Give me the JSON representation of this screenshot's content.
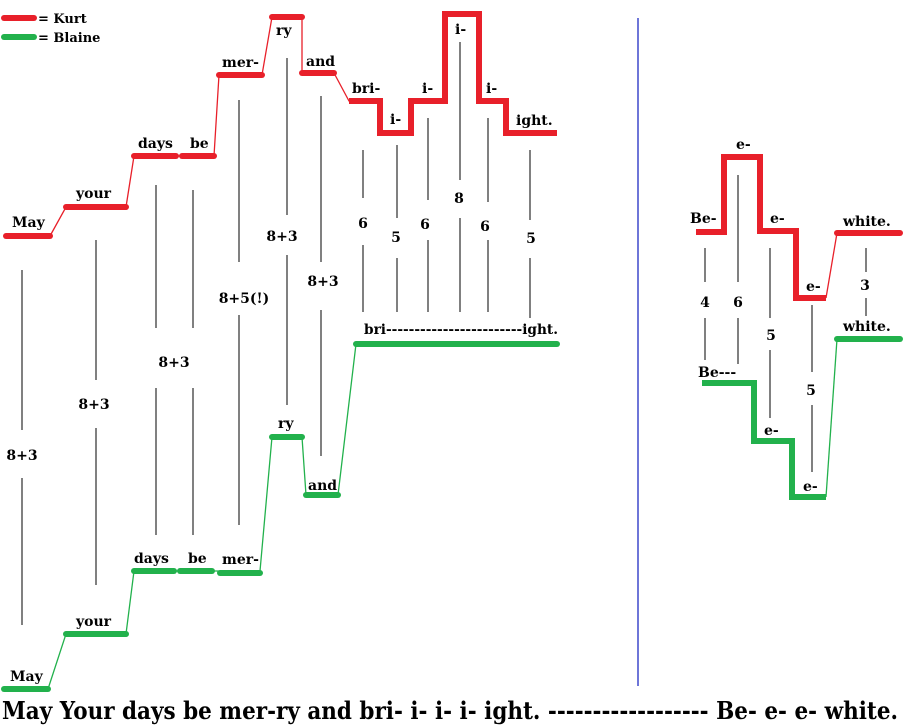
{
  "legend": [
    {
      "label": "= Kurt",
      "color": "#e8202a"
    },
    {
      "label": "= Blaine",
      "color": "#22b14c"
    }
  ],
  "lyrics": "May Your days be mer-ry and bri- i- i- i- ight. ------------------ Be- e- e- white.",
  "colors": {
    "kurt": "#e8202a",
    "blaine": "#22b14c",
    "divider": "#3f48cc",
    "line": "#000000"
  },
  "phrase1": {
    "kurt": [
      {
        "label": "May",
        "level": 1
      },
      {
        "label": "your",
        "level": 2
      },
      {
        "label": "days",
        "level": 4
      },
      {
        "label": "be",
        "level": 4
      },
      {
        "label": "mer-",
        "level": 7
      },
      {
        "label": "ry",
        "level": 9
      },
      {
        "label": "and",
        "level": 7
      },
      {
        "label": "bri-",
        "level": 6
      },
      {
        "label": "i-",
        "level": 5
      },
      {
        "label": "i-",
        "level": 6
      },
      {
        "label": "i-",
        "level": 9
      },
      {
        "label": "i-",
        "level": 6
      },
      {
        "label": "ight.",
        "level": 5
      }
    ],
    "blaine": [
      {
        "label": "May",
        "level": -10
      },
      {
        "label": "your",
        "level": -9
      },
      {
        "label": "days",
        "level": -7
      },
      {
        "label": "be",
        "level": -7
      },
      {
        "label": "mer-",
        "level": -7
      },
      {
        "label": "ry",
        "level": -3
      },
      {
        "label": "and",
        "level": -5
      },
      {
        "label": "bri------------------------ight.",
        "level": 0
      }
    ],
    "intervals": [
      "8+3",
      "8+3",
      "8+3",
      "8+5(!)",
      "8+3",
      "8+3",
      "6",
      "5",
      "6",
      "8",
      "6",
      "5"
    ]
  },
  "phrase2": {
    "kurt": [
      {
        "label": "Be-",
        "level": 5
      },
      {
        "label": "e-",
        "level": 7
      },
      {
        "label": "e-",
        "level": 5
      },
      {
        "label": "e-",
        "level": 2
      },
      {
        "label": "white.",
        "level": 5
      }
    ],
    "blaine": [
      {
        "label": "Be---",
        "level": 0
      },
      {
        "label": "e-",
        "level": -2
      },
      {
        "label": "e-",
        "level": -4
      },
      {
        "label": "white.",
        "level": 2
      }
    ],
    "intervals": [
      "4",
      "6",
      "5",
      "5",
      "3"
    ]
  }
}
